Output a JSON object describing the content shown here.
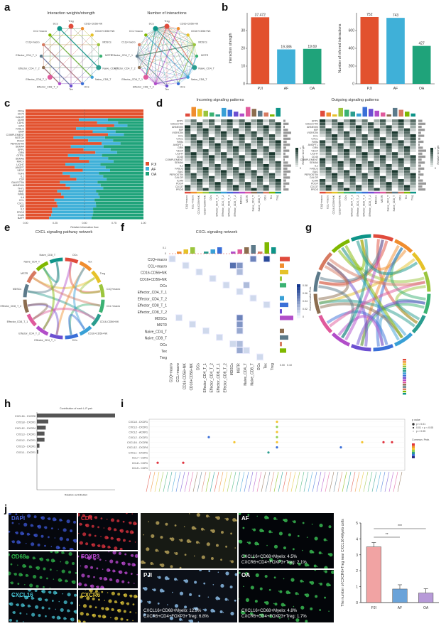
{
  "panels": {
    "a": "a",
    "b": "b",
    "c": "c",
    "d": "d",
    "e": "e",
    "f": "f",
    "g": "g",
    "h": "h",
    "i": "i",
    "j": "j"
  },
  "panel_a": {
    "titles": [
      "Interaction weights/strength",
      "Number of interactions"
    ],
    "nodes": [
      "Treg",
      "CD16-CD56-NK",
      "CD16+CD56+NK",
      "MDSCs",
      "MSTR",
      "Naive_CD4_T",
      "Naive_CD8_T",
      "OCs",
      "Tex",
      "Effector_CD8_T_2",
      "Effector_CD8_T_1",
      "Effector_CD4_T_2",
      "Effector_CD4_T_1",
      "C1Q+macro",
      "CCL+macro",
      "DCs"
    ]
  },
  "panel_b": {
    "ylabel_left": "Interaction strength",
    "ylabel_right": "Number of inferred interactions",
    "colors": {
      "PJI": "#e2512e",
      "AF": "#3fb0d8",
      "OA": "#1fa37a"
    }
  },
  "panel_c": {
    "xlabel": "Relative information flow",
    "pathways": [
      "FN1a",
      "CD74",
      "CALCR",
      "CD99",
      "CDH1",
      "EPO",
      "FASLG",
      "BMP",
      "COMPLEMENT",
      "NOTCH",
      "PDGF",
      "PERIOSTIN",
      "SEMA4",
      "SPP1",
      "GRN",
      "GITRL",
      "SEMA3",
      "MHC-I",
      "LIGHT",
      "ANGPT",
      "VEGF",
      "TGFb",
      "IL1",
      "CSF",
      "GALECTIN",
      "ANNEXIN",
      "THY1",
      "WNT",
      "PARs",
      "IL6",
      "CCL",
      "CXCL",
      "MIF",
      "IL2",
      "PROS",
      "ICAM",
      "BAFF"
    ],
    "ticks": [
      "0.00",
      "0.25",
      "0.50",
      "0.75",
      "1.00"
    ],
    "legend": [
      "PJI",
      "AF",
      "OA"
    ]
  },
  "panel_d": {
    "titles": [
      "Incoming signaling patterns",
      "Outgoing signaling patterns"
    ],
    "rows": [
      "SPP1",
      "GALECTIN",
      "ANNEXIN",
      "MIF",
      "VISFATIN",
      "CCL",
      "CXCL",
      "PARs",
      "ANGPTL",
      "GRN",
      "VEGF",
      "LIGHT",
      "CD40",
      "COMPLEMENT",
      "SEMA4",
      "IL1",
      "FASLG",
      "BAG",
      "PERIOSTIN",
      "CALCR",
      "ICAM",
      "PDGF",
      "CD137",
      "PROS"
    ],
    "cols": [
      "C1Q+macro",
      "CCL+macro",
      "CD16-CD56+NK",
      "CD16+CD56+NK",
      "DCs",
      "Effector_CD4_T_1",
      "Effector_CD4_T_2",
      "Effector_CD8_T_1",
      "Effector_CD8_T_2",
      "MDSCs",
      "MSTR",
      "Naive_CD4_T",
      "Naive_CD8_T",
      "OCs",
      "Tex",
      "Treg"
    ],
    "legend_title": "Relative strength",
    "legend_ticks": [
      "1",
      "0"
    ]
  },
  "panel_e": {
    "title": "CXCL signaling pathway network",
    "nodes": [
      "OCs",
      "Tex",
      "Treg",
      "C1Q+macro",
      "CCL+macro",
      "CD16-CD56+NK",
      "CD16+CD56+NK",
      "DCs",
      "Effector_CD4_T_1",
      "Effector_CD4_T_2",
      "Effector_CD8_T_1",
      "Effector_CD8_T_2",
      "MDSCs",
      "MSTR",
      "Naive_CD4_T",
      "Naive_CD8_T"
    ]
  },
  "panel_f": {
    "title": "CXCL signaling network",
    "rows": [
      "C1Q+macro",
      "CCL+macro",
      "CD16-CD56+NK",
      "CD16+CD56+NK",
      "DCs",
      "Effector_CD4_T_1",
      "Effector_CD4_T_2",
      "Effector_CD8_T_1",
      "Effector_CD8_T_2",
      "MDSCs",
      "MSTR",
      "Naive_CD4_T",
      "Naive_CD8_T",
      "OCs",
      "Tex",
      "Treg"
    ],
    "legend_title": "Communication Prob.",
    "legend_ticks": [
      "0.08",
      "0.06",
      "0.04",
      "0.02",
      "0"
    ],
    "top_ticks": [
      "0.1",
      "0"
    ],
    "right_ticks": [
      "0.00",
      "0.10"
    ]
  },
  "panel_h": {
    "title": "Contribution of each L-R pair",
    "xlabel": "Relative contribution",
    "pairs": [
      "CXCL16 - CXCR6",
      "CXCL8 - CXCR1",
      "CXCL12 - CXCR4",
      "CXCL3 - CXCR1",
      "CXCL2 - CXCR1",
      "CXCL5 - CXCR1",
      "CXCL1 - CXCR1"
    ]
  },
  "panel_i": {
    "rows": [
      "CXCL8 - CXCR1",
      "CXCL3 - CXCR1",
      "CXCL2 - ACKR1",
      "CXCL2 - CXCR1",
      "CXCL16 - CXCR6",
      "CXCL12 - CXCR4",
      "CXCL1 - CXCR1",
      "CCL7 - CCR1",
      "CCL8 - CCR1",
      "CCL5 - CCR1"
    ],
    "legend_title1": "p value",
    "legend_title2": "Commun. Prob.",
    "pvals": [
      "p < 0.01",
      "0.01 < p < 0.05",
      "p > 0.05"
    ]
  },
  "panel_j": {
    "tiles": [
      "DAPI",
      "CD4",
      "CD68",
      "FOXP3",
      "CXCL16",
      "CXCR6"
    ],
    "big_labels": [
      "PJI",
      "AF",
      "OA"
    ],
    "captions": {
      "PJI": [
        "CXCL16+CD68+Myelo: 12.5%",
        "CXCR6+CD4+FOXP3+Treg: 6.8%"
      ],
      "AF": [
        "CXCL16+CD68+Myelo: 4.5%",
        "CXCR6+CD4+FOXP3+Treg: 2.1%"
      ],
      "OA": [
        "CXCL16+CD68+Myelo: 4.8%",
        "CXCR6+CD4+FOXP3+Treg: 1.7%"
      ]
    },
    "ylabel": "The number of CXCR6+Treg near CXCL16+Myelo cells",
    "sig": [
      "**",
      "***"
    ],
    "yticks": [
      "0",
      "1",
      "2",
      "3",
      "4",
      "5"
    ]
  },
  "chart_data": [
    {
      "type": "bar",
      "id": "b-strength",
      "categories": [
        "PJI",
        "AF",
        "OA"
      ],
      "values": [
        37.472,
        19.386,
        19.69
      ],
      "value_labels": [
        "37.472",
        "19.386",
        "19.69"
      ],
      "xlabel": "",
      "ylabel": "Interaction strength",
      "ylim": [
        0,
        40
      ],
      "yticks": [
        "0",
        "10",
        "20",
        "30"
      ]
    },
    {
      "type": "bar",
      "id": "b-count",
      "categories": [
        "PJI",
        "AF",
        "OA"
      ],
      "values": [
        752,
        743,
        427
      ],
      "value_labels": [
        "752",
        "743",
        "427"
      ],
      "xlabel": "",
      "ylabel": "Number of inferred interactions",
      "ylim": [
        0,
        800
      ],
      "yticks": [
        "0",
        "200",
        "400",
        "600"
      ]
    },
    {
      "type": "bar",
      "id": "h-contrib",
      "categories": [
        "CXCL16 - CXCR6",
        "CXCL8 - CXCR1",
        "CXCL12 - CXCR4",
        "CXCL3 - CXCR1",
        "CXCL2 - CXCR1",
        "CXCL5 - CXCR1",
        "CXCL1 - CXCR1"
      ],
      "values": [
        0.62,
        0.09,
        0.07,
        0.06,
        0.06,
        0.02,
        0.01
      ],
      "title": "Contribution of each L-R pair",
      "xlabel": "Relative contribution"
    },
    {
      "type": "bar",
      "id": "j-count",
      "categories": [
        "PJI",
        "AF",
        "OA"
      ],
      "values": [
        3.5,
        0.85,
        0.6
      ],
      "ylabel": "The number of CXCR6+Treg near CXCL16+Myelo cells",
      "ylim": [
        0,
        5
      ],
      "colors": [
        "#f1a3a3",
        "#6aa3d9",
        "#b79ad8"
      ]
    }
  ]
}
